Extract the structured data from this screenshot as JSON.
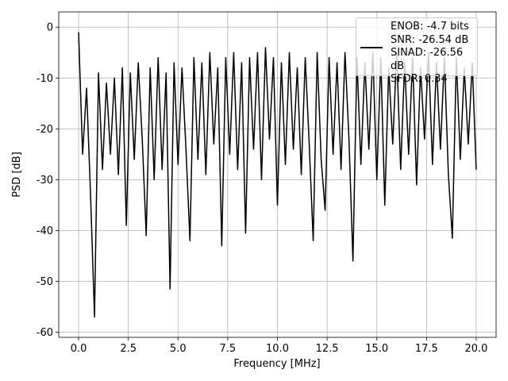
{
  "chart_data": {
    "type": "line",
    "xlabel": "Frequency [MHz]",
    "ylabel": "PSD [dB]",
    "x": [
      0,
      0.2,
      0.4,
      0.6,
      0.8,
      1.0,
      1.2,
      1.4,
      1.6,
      1.8,
      2.0,
      2.2,
      2.4,
      2.6,
      2.8,
      3.0,
      3.2,
      3.4,
      3.6,
      3.8,
      4.0,
      4.2,
      4.4,
      4.6,
      4.8,
      5.0,
      5.2,
      5.4,
      5.6,
      5.8,
      6.0,
      6.2,
      6.4,
      6.6,
      6.8,
      7.0,
      7.2,
      7.4,
      7.6,
      7.8,
      8.0,
      8.2,
      8.4,
      8.6,
      8.8,
      9.0,
      9.2,
      9.4,
      9.6,
      9.8,
      10.0,
      10.2,
      10.4,
      10.6,
      10.8,
      11.0,
      11.2,
      11.4,
      11.6,
      11.8,
      12.0,
      12.2,
      12.4,
      12.6,
      12.8,
      13.0,
      13.2,
      13.4,
      13.6,
      13.8,
      14.0,
      14.2,
      14.4,
      14.6,
      14.8,
      15.0,
      15.2,
      15.4,
      15.6,
      15.8,
      16.0,
      16.2,
      16.4,
      16.6,
      16.8,
      17.0,
      17.2,
      17.4,
      17.6,
      17.8,
      18.0,
      18.2,
      18.4,
      18.6,
      18.8,
      19.0,
      19.2,
      19.4,
      19.6,
      19.8,
      20.0
    ],
    "series": [
      {
        "name": "ENOB: -4.7 bits\nSNR: -26.54 dB\nSINAD: -26.56 dB\nSFDR: 0.34",
        "color": "#000000",
        "values": [
          -1,
          -25,
          -12,
          -33,
          -57,
          -9,
          -28,
          -11,
          -25,
          -10,
          -29,
          -8,
          -39,
          -9,
          -26,
          -7,
          -22,
          -41,
          -8,
          -30,
          -6,
          -28,
          -9,
          -51.5,
          -7,
          -27,
          -8,
          -24,
          -42,
          -6,
          -26,
          -7,
          -29,
          -5,
          -23,
          -8,
          -43,
          -6,
          -25,
          -5,
          -28,
          -7,
          -40.5,
          -6,
          -24,
          -5,
          -30,
          -4,
          -22,
          -6,
          -35,
          -7,
          -27,
          -5,
          -24,
          -8,
          -29,
          -6,
          -23,
          -42,
          -5,
          -26,
          -36,
          -6,
          -25,
          -7,
          -28,
          -5,
          -22,
          -46,
          -6,
          -27,
          -7,
          -24,
          -5,
          -30,
          -6,
          -35,
          -8,
          -23,
          -5,
          -28,
          -7,
          -25,
          -6,
          -31,
          -8,
          -22,
          -5,
          -27,
          -7,
          -24,
          -6,
          -29,
          -41.5,
          -6,
          -26,
          -8,
          -23,
          -7,
          -28
        ]
      }
    ],
    "xlim": [
      -1,
      21
    ],
    "ylim": [
      -61,
      3
    ],
    "xticks": [
      {
        "value": 0,
        "label": "0.0"
      },
      2.5,
      {
        "value": 5,
        "label": "5.0"
      },
      7.5,
      {
        "value": 10,
        "label": "10.0"
      },
      12.5,
      {
        "value": 15,
        "label": "15.0"
      },
      17.5,
      {
        "value": 20,
        "label": "20.0"
      }
    ],
    "yticks": [
      0,
      -10,
      -20,
      -30,
      -40,
      -50,
      -60
    ],
    "grid": true,
    "legend": "upper right"
  }
}
